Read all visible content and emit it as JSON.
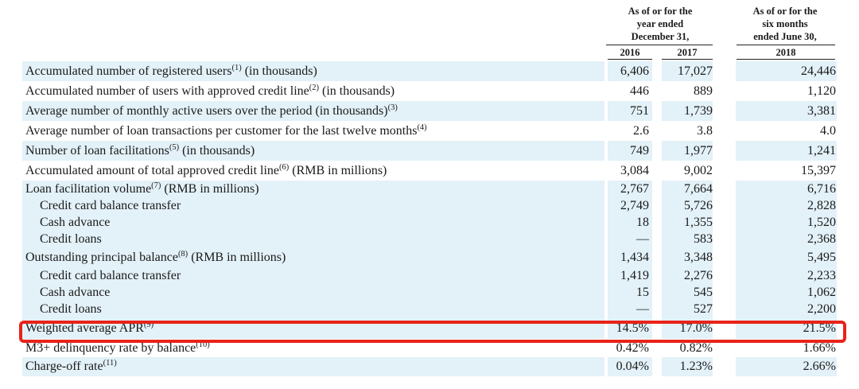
{
  "header": {
    "col_a_lines": [
      "As of or for the",
      "year ended",
      "December 31,"
    ],
    "col_b_lines": [
      "As of or for the",
      "six months",
      "ended June 30,"
    ],
    "years": [
      "2016",
      "2017",
      "2018"
    ]
  },
  "rows": [
    {
      "label": "Accumulated number of registered users",
      "sup": "(1)",
      "suffix": " (in thousands)",
      "v2016": "6,406",
      "v2017": "17,027",
      "v2018": "24,446",
      "shaded": true,
      "sub": false
    },
    {
      "label": "Accumulated number of users with approved credit line",
      "sup": "(2)",
      "suffix": " (in thousands)",
      "v2016": "446",
      "v2017": "889",
      "v2018": "1,120",
      "shaded": false,
      "sub": false
    },
    {
      "label": "Average number of monthly active users over the period (in thousands)",
      "sup": "(3)",
      "suffix": "",
      "v2016": "751",
      "v2017": "1,739",
      "v2018": "3,381",
      "shaded": true,
      "sub": false
    },
    {
      "label": "Average number of loan transactions per customer for the last twelve months",
      "sup": "(4)",
      "suffix": "",
      "v2016": "2.6",
      "v2017": "3.8",
      "v2018": "4.0",
      "shaded": false,
      "sub": false
    },
    {
      "label": "Number of loan facilitations",
      "sup": "(5)",
      "suffix": " (in thousands)",
      "v2016": "749",
      "v2017": "1,977",
      "v2018": "1,241",
      "shaded": true,
      "sub": false
    },
    {
      "label": "Accumulated amount of total approved credit line",
      "sup": "(6)",
      "suffix": " (RMB in millions)",
      "v2016": "3,084",
      "v2017": "9,002",
      "v2018": "15,397",
      "shaded": false,
      "sub": false
    },
    {
      "label": "Loan facilitation volume",
      "sup": "(7)",
      "suffix": " (RMB in millions)",
      "v2016": "2,767",
      "v2017": "7,664",
      "v2018": "6,716",
      "shaded": true,
      "sub": false
    },
    {
      "label": "Credit card balance transfer",
      "sup": "",
      "suffix": "",
      "v2016": "2,749",
      "v2017": "5,726",
      "v2018": "2,828",
      "shaded": true,
      "sub": true
    },
    {
      "label": "Cash advance",
      "sup": "",
      "suffix": "",
      "v2016": "18",
      "v2017": "1,355",
      "v2018": "1,520",
      "shaded": true,
      "sub": true
    },
    {
      "label": "Credit loans",
      "sup": "",
      "suffix": "",
      "v2016": "—",
      "v2017": "583",
      "v2018": "2,368",
      "shaded": true,
      "sub": true
    },
    {
      "label": "Outstanding principal balance",
      "sup": "(8)",
      "suffix": " (RMB in millions)",
      "v2016": "1,434",
      "v2017": "3,348",
      "v2018": "5,495",
      "shaded": true,
      "sub": false
    },
    {
      "label": "Credit card balance transfer",
      "sup": "",
      "suffix": "",
      "v2016": "1,419",
      "v2017": "2,276",
      "v2018": "2,233",
      "shaded": true,
      "sub": true
    },
    {
      "label": "Cash advance",
      "sup": "",
      "suffix": "",
      "v2016": "15",
      "v2017": "545",
      "v2018": "1,062",
      "shaded": true,
      "sub": true
    },
    {
      "label": "Credit loans",
      "sup": "",
      "suffix": "",
      "v2016": "—",
      "v2017": "527",
      "v2018": "2,200",
      "shaded": true,
      "sub": true
    },
    {
      "label": "Weighted average APR",
      "sup": "(9)",
      "suffix": "",
      "v2016": "14.5%",
      "v2017": "17.0%",
      "v2018": "21.5%",
      "shaded": true,
      "sub": false
    },
    {
      "label": "M3+ delinquency rate by balance",
      "sup": "(10)",
      "suffix": "",
      "v2016": "0.42%",
      "v2017": "0.82%",
      "v2018": "1.66%",
      "shaded": false,
      "sub": false
    },
    {
      "label": "Charge-off rate",
      "sup": "(11)",
      "suffix": "",
      "v2016": "0.04%",
      "v2017": "1.23%",
      "v2018": "2.66%",
      "shaded": true,
      "sub": false
    }
  ],
  "highlight": {
    "color": "#e8231a"
  },
  "colors": {
    "band": "#e3f1f8"
  }
}
